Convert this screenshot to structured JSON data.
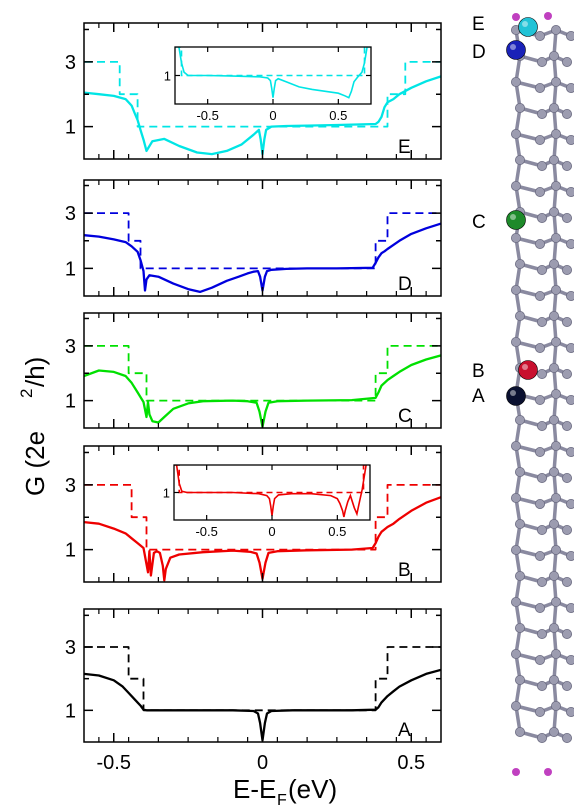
{
  "chart_data": {
    "type": "line",
    "ylabel": "G (2e",
    "ylabel_sup": "2",
    "ylabel_tail": "/h)",
    "xlabel": "E-E",
    "xlabel_sub": "F",
    "xlabel_tail": " (eV)",
    "xlim": [
      -0.6,
      0.6
    ],
    "x_ticks": [
      "-0.5",
      "0",
      "0.5"
    ],
    "x_tick_values": [
      -0.5,
      0,
      0.5
    ],
    "y_ticks": [
      "1",
      "3"
    ],
    "y_tick_values": [
      1,
      3
    ],
    "ylim": [
      0,
      4.2
    ],
    "panels": [
      {
        "letter": "E",
        "color": "#00e5e5",
        "series": [
          {
            "style": "dashed",
            "x": [
              -0.6,
              -0.48,
              -0.48,
              -0.42,
              -0.42,
              -0.39,
              -0.39,
              0.39,
              0.39,
              0.42,
              0.42,
              0.48,
              0.48,
              0.6
            ],
            "y": [
              3,
              3,
              2,
              2,
              1,
              1,
              1,
              1,
              1,
              1,
              2,
              2,
              3,
              3
            ]
          },
          {
            "style": "solid",
            "x": [
              -0.6,
              -0.55,
              -0.5,
              -0.46,
              -0.44,
              -0.43,
              -0.42,
              -0.41,
              -0.4,
              -0.39,
              -0.37,
              -0.33,
              -0.28,
              -0.22,
              -0.17,
              -0.12,
              -0.07,
              -0.03,
              -0.012,
              -0.006,
              0,
              0.006,
              0.012,
              0.03,
              0.08,
              0.15,
              0.25,
              0.38,
              0.39,
              0.4,
              0.41,
              0.42,
              0.43,
              0.44,
              0.46,
              0.5,
              0.55,
              0.6
            ],
            "y": [
              2.05,
              2.0,
              1.95,
              1.85,
              1.65,
              1.42,
              1.2,
              0.9,
              0.6,
              0.25,
              0.55,
              0.62,
              0.4,
              0.2,
              0.15,
              0.25,
              0.45,
              0.75,
              0.9,
              0.6,
              0.15,
              0.6,
              0.9,
              1.0,
              1.02,
              1.03,
              1.05,
              1.08,
              1.15,
              1.3,
              1.6,
              1.75,
              1.8,
              1.85,
              2.0,
              2.2,
              2.4,
              2.55
            ]
          }
        ],
        "inset": {
          "xlim": [
            -0.75,
            0.75
          ],
          "x_ticks": [
            "-0.5",
            "0",
            "0.5"
          ],
          "x_tick_values": [
            -0.5,
            0,
            0.5
          ],
          "y_tick": "1",
          "y_tick_value": 1,
          "ylim": [
            0.55,
            1.45
          ],
          "series": [
            {
              "style": "dashed",
              "x": [
                -0.75,
                -0.7,
                -0.7,
                0.7,
                0.7,
                0.75
              ],
              "y": [
                1.45,
                1.45,
                1,
                1,
                1.45,
                1.45
              ]
            },
            {
              "style": "solid",
              "x": [
                -0.72,
                -0.7,
                -0.68,
                -0.65,
                -0.5,
                -0.3,
                -0.1,
                -0.04,
                -0.02,
                -0.01,
                0,
                0.01,
                0.02,
                0.04,
                0.1,
                0.2,
                0.3,
                0.4,
                0.5,
                0.55,
                0.58,
                0.6,
                0.62,
                0.65,
                0.68,
                0.7,
                0.72
              ],
              "y": [
                1.45,
                1.2,
                1.05,
                1.0,
                1.0,
                0.99,
                0.98,
                0.96,
                0.92,
                0.8,
                0.65,
                0.8,
                0.92,
                0.95,
                0.9,
                0.82,
                0.78,
                0.75,
                0.72,
                0.68,
                0.65,
                0.75,
                0.9,
                0.98,
                1.05,
                1.2,
                1.45
              ]
            }
          ]
        }
      },
      {
        "letter": "D",
        "color": "#0000dd",
        "series": [
          {
            "style": "dashed",
            "x": [
              -0.6,
              -0.45,
              -0.45,
              -0.41,
              -0.41,
              0.38,
              0.38,
              0.42,
              0.42,
              0.48,
              0.48,
              0.6
            ],
            "y": [
              3,
              3,
              2,
              2,
              1,
              1,
              2,
              2,
              3,
              3,
              3,
              3
            ]
          },
          {
            "style": "solid",
            "x": [
              -0.6,
              -0.55,
              -0.5,
              -0.46,
              -0.44,
              -0.42,
              -0.41,
              -0.4,
              -0.395,
              -0.39,
              -0.38,
              -0.35,
              -0.3,
              -0.25,
              -0.21,
              -0.17,
              -0.12,
              -0.08,
              -0.05,
              -0.03,
              -0.015,
              -0.008,
              0,
              0.008,
              0.015,
              0.03,
              0.08,
              0.15,
              0.25,
              0.37,
              0.38,
              0.39,
              0.4,
              0.41,
              0.42,
              0.44,
              0.46,
              0.5,
              0.55,
              0.6
            ],
            "y": [
              2.2,
              2.15,
              2.05,
              1.95,
              1.8,
              1.6,
              1.3,
              0.9,
              0.2,
              0.6,
              0.75,
              0.7,
              0.45,
              0.25,
              0.15,
              0.3,
              0.55,
              0.7,
              0.82,
              0.88,
              0.9,
              0.7,
              0.2,
              0.7,
              0.9,
              0.95,
              0.98,
              1.0,
              1.0,
              1.02,
              1.2,
              1.4,
              1.55,
              1.62,
              1.7,
              1.85,
              2.0,
              2.25,
              2.45,
              2.62
            ]
          }
        ]
      },
      {
        "letter": "C",
        "color": "#00e000",
        "series": [
          {
            "style": "dashed",
            "x": [
              -0.6,
              -0.45,
              -0.45,
              -0.39,
              -0.39,
              0.38,
              0.38,
              0.42,
              0.42,
              0.48,
              0.48,
              0.6
            ],
            "y": [
              3,
              3,
              2,
              2,
              1,
              1,
              2,
              2,
              3,
              3,
              3,
              3
            ]
          },
          {
            "style": "solid",
            "x": [
              -0.6,
              -0.55,
              -0.5,
              -0.46,
              -0.44,
              -0.42,
              -0.4,
              -0.39,
              -0.385,
              -0.38,
              -0.37,
              -0.35,
              -0.33,
              -0.3,
              -0.25,
              -0.2,
              -0.1,
              -0.05,
              -0.02,
              -0.01,
              0,
              0.01,
              0.02,
              0.05,
              0.15,
              0.3,
              0.38,
              0.39,
              0.4,
              0.42,
              0.44,
              0.46,
              0.5,
              0.55,
              0.6
            ],
            "y": [
              1.9,
              2.1,
              2.05,
              1.9,
              1.65,
              1.3,
              0.95,
              0.4,
              0.95,
              0.5,
              0.25,
              0.2,
              0.4,
              0.7,
              0.9,
              0.98,
              1.0,
              0.98,
              0.92,
              0.6,
              0.05,
              0.6,
              0.92,
              0.98,
              1.0,
              1.02,
              1.1,
              1.3,
              1.55,
              1.75,
              1.9,
              2.05,
              2.3,
              2.5,
              2.65
            ]
          }
        ]
      },
      {
        "letter": "B",
        "color": "#ee0000",
        "series": [
          {
            "style": "dashed",
            "x": [
              -0.6,
              -0.44,
              -0.44,
              -0.39,
              -0.39,
              0.38,
              0.38,
              0.42,
              0.42,
              0.48,
              0.48,
              0.6
            ],
            "y": [
              3,
              3,
              2,
              2,
              1,
              1,
              2,
              2,
              3,
              3,
              3,
              3
            ]
          },
          {
            "style": "solid",
            "x": [
              -0.6,
              -0.55,
              -0.5,
              -0.46,
              -0.44,
              -0.42,
              -0.4,
              -0.385,
              -0.38,
              -0.375,
              -0.365,
              -0.355,
              -0.345,
              -0.335,
              -0.33,
              -0.325,
              -0.31,
              -0.28,
              -0.2,
              -0.1,
              -0.04,
              -0.02,
              -0.01,
              0,
              0.01,
              0.02,
              0.05,
              0.15,
              0.3,
              0.37,
              0.38,
              0.39,
              0.4,
              0.42,
              0.44,
              0.46,
              0.5,
              0.55,
              0.6
            ],
            "y": [
              1.85,
              1.8,
              1.65,
              1.5,
              1.35,
              1.2,
              1.05,
              0.3,
              0.95,
              0.2,
              0.9,
              0.95,
              0.9,
              0.5,
              0.05,
              0.4,
              0.75,
              0.85,
              0.92,
              0.97,
              0.93,
              0.88,
              0.6,
              0.1,
              0.6,
              0.9,
              0.95,
              0.98,
              1.0,
              1.05,
              1.2,
              1.4,
              1.55,
              1.7,
              1.8,
              1.95,
              2.2,
              2.45,
              2.62
            ]
          }
        ],
        "inset": {
          "xlim": [
            -0.75,
            0.75
          ],
          "x_ticks": [
            "-0.5",
            "0",
            "0.5"
          ],
          "x_tick_values": [
            -0.5,
            0,
            0.5
          ],
          "y_tick": "1",
          "y_tick_value": 1,
          "ylim": [
            0.55,
            1.45
          ],
          "series": [
            {
              "style": "dashed",
              "x": [
                -0.75,
                -0.71,
                -0.71,
                0.7,
                0.7,
                0.75
              ],
              "y": [
                1.45,
                1.45,
                1,
                1,
                1.45,
                1.45
              ]
            },
            {
              "style": "solid",
              "x": [
                -0.73,
                -0.71,
                -0.69,
                -0.65,
                -0.5,
                -0.3,
                -0.1,
                -0.04,
                -0.02,
                -0.01,
                0,
                0.01,
                0.02,
                0.05,
                0.15,
                0.3,
                0.45,
                0.5,
                0.52,
                0.54,
                0.55,
                0.56,
                0.58,
                0.6,
                0.63,
                0.65,
                0.67,
                0.69,
                0.72
              ],
              "y": [
                1.45,
                1.15,
                1.02,
                1.0,
                1.0,
                1.0,
                0.98,
                0.95,
                0.9,
                0.78,
                0.62,
                0.78,
                0.9,
                0.96,
                0.98,
                0.98,
                0.95,
                0.9,
                0.82,
                0.7,
                0.6,
                0.7,
                0.85,
                0.95,
                0.75,
                0.65,
                0.85,
                1.05,
                1.45
              ]
            }
          ]
        }
      },
      {
        "letter": "A",
        "color": "#000000",
        "series": [
          {
            "style": "dashed",
            "x": [
              -0.6,
              -0.45,
              -0.45,
              -0.4,
              -0.4,
              0.38,
              0.38,
              0.42,
              0.42,
              0.48,
              0.48,
              0.6
            ],
            "y": [
              3,
              3,
              2,
              2,
              1,
              1,
              2,
              2,
              3,
              3,
              3,
              3
            ]
          },
          {
            "style": "solid",
            "x": [
              -0.6,
              -0.55,
              -0.5,
              -0.47,
              -0.45,
              -0.43,
              -0.41,
              -0.4,
              -0.39,
              -0.3,
              -0.1,
              -0.03,
              -0.015,
              -0.008,
              0,
              0.008,
              0.015,
              0.03,
              0.1,
              0.3,
              0.38,
              0.39,
              0.4,
              0.42,
              0.44,
              0.46,
              0.5,
              0.55,
              0.6
            ],
            "y": [
              2.15,
              2.1,
              1.95,
              1.75,
              1.55,
              1.35,
              1.15,
              1.02,
              1.0,
              1.0,
              1.0,
              0.98,
              0.9,
              0.6,
              0.05,
              0.6,
              0.9,
              0.98,
              1.0,
              1.0,
              1.02,
              1.1,
              1.25,
              1.45,
              1.6,
              1.75,
              1.95,
              2.15,
              2.28
            ]
          }
        ]
      }
    ]
  },
  "molecule": {
    "labels": [
      "E",
      "D",
      "C",
      "B",
      "A"
    ],
    "site_colors": {
      "E": "#22c3d6",
      "D": "#1a22b8",
      "C": "#1e8a2a",
      "B": "#c8102e",
      "A": "#0a1030"
    },
    "carbon_color": "#9c9cb0",
    "hydrogen_color": "#c040c0",
    "bond_color": "#8a8aa0"
  }
}
